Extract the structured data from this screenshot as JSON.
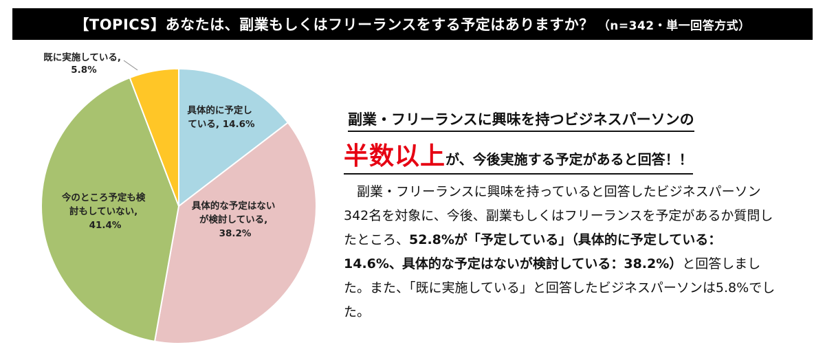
{
  "header": {
    "title": "【TOPICS】あなたは、副業もしくはフリーランスをする予定はありますか？",
    "note": "（n=342・単一回答方式）"
  },
  "chart_data": {
    "type": "pie",
    "slices": [
      {
        "label_line1": "具体的に予定し",
        "label_line2": "ている, 14.6%",
        "label_line3": "",
        "value": 14.6,
        "color": "#aad7e4"
      },
      {
        "label_line1": "具体的な予定はない",
        "label_line2": "が検討している,",
        "label_line3": "38.2%",
        "value": 38.2,
        "color": "#e9c2c2"
      },
      {
        "label_line1": "今のところ予定も検",
        "label_line2": "討もしていない,",
        "label_line3": "41.4%",
        "value": 41.4,
        "color": "#a8c26f"
      },
      {
        "label_line1": "既に実施している,",
        "label_line2": "5.8%",
        "label_line3": "",
        "value": 5.8,
        "color": "#ffc627"
      }
    ]
  },
  "text": {
    "heading1": "副業・フリーランスに興味を持つビジネスパーソンの",
    "heading2_big": "半数以上",
    "heading2_rest": "が、今後実施する予定があると回答！！",
    "body_part1": "　副業・フリーランスに興味を持っていると回答したビジネスパーソン342名を対象に、今後、副業もしくはフリーランスを予定があるか質問したところ、",
    "body_bold": "52.8%が「予定している」（具体的に予定している：14.6%、具体的な予定はないが検討している：38.2%）",
    "body_part2": "と回答しました。また、「既に実施している」と回答したビジネスパーソンは5.8%でした。"
  }
}
